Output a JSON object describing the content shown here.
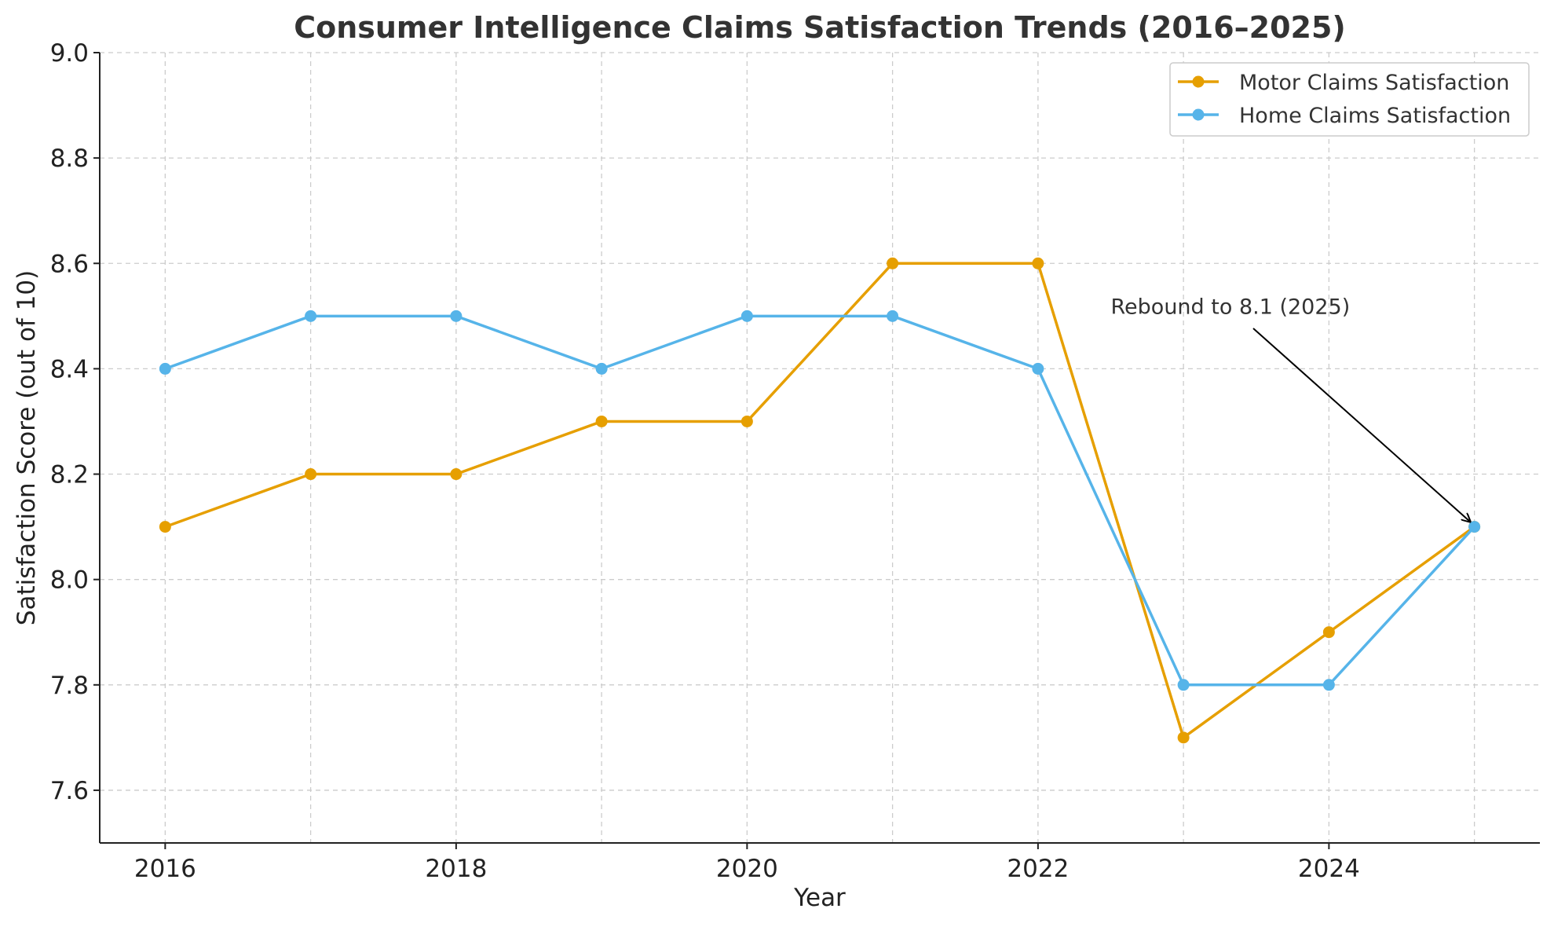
{
  "chart_data": {
    "type": "line",
    "title": "Consumer Intelligence Claims Satisfaction Trends (2016–2025)",
    "xlabel": "Year",
    "ylabel": "Satisfaction Score (out of 10)",
    "x": [
      2016,
      2017,
      2018,
      2019,
      2020,
      2021,
      2022,
      2023,
      2024,
      2025
    ],
    "xlim": [
      2015.55,
      2025.45
    ],
    "ylim": [
      7.5,
      9.0
    ],
    "x_ticks": [
      2016,
      2018,
      2020,
      2022,
      2024
    ],
    "x_tick_labels": [
      "2016",
      "2018",
      "2020",
      "2022",
      "2024"
    ],
    "y_ticks": [
      7.6,
      7.8,
      8.0,
      8.2,
      8.4,
      8.6,
      8.8,
      9.0
    ],
    "y_tick_labels": [
      "7.6",
      "7.8",
      "8.0",
      "8.2",
      "8.4",
      "8.6",
      "8.8",
      "9.0"
    ],
    "grid": true,
    "legend_position": "top-right",
    "series": [
      {
        "name": "Motor Claims Satisfaction",
        "color": "#E69F00",
        "marker": "circle",
        "values": [
          8.1,
          8.2,
          8.2,
          8.3,
          8.3,
          8.6,
          8.6,
          7.7,
          7.9,
          8.1
        ]
      },
      {
        "name": "Home Claims Satisfaction",
        "color": "#56B4E9",
        "marker": "circle",
        "values": [
          8.4,
          8.5,
          8.5,
          8.4,
          8.5,
          8.5,
          8.4,
          7.8,
          7.8,
          8.1
        ]
      }
    ],
    "annotations": [
      {
        "text": "Rebound to 8.1 (2025)",
        "text_x": 2022.5,
        "text_y": 8.5,
        "target_x": 2025,
        "target_y": 8.1
      }
    ]
  }
}
